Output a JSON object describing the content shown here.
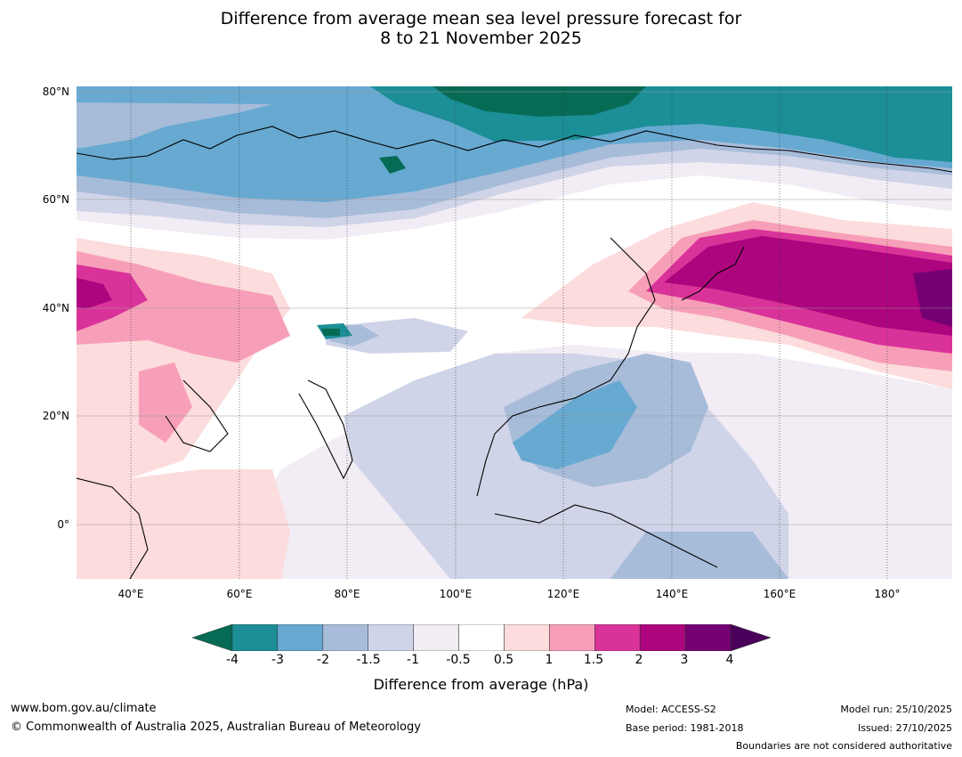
{
  "title": {
    "line1": "Difference from average mean sea level pressure forecast for",
    "line2": "8 to 21 November 2025"
  },
  "map": {
    "lat_labels": [
      "80°N",
      "60°N",
      "40°N",
      "20°N",
      "0°"
    ],
    "lon_labels": [
      "40°E",
      "60°E",
      "80°E",
      "100°E",
      "120°E",
      "140°E",
      "160°E",
      "180°"
    ],
    "lat_range": [
      -10,
      81
    ],
    "lon_range": [
      30,
      192
    ]
  },
  "colorbar": {
    "colors": [
      "#066b55",
      "#1b8e96",
      "#67a9d1",
      "#a7bcd9",
      "#d0d4e8",
      "#f2ecf4",
      "#ffffff",
      "#fcdcdc",
      "#f79fb8",
      "#d93399",
      "#ad057e",
      "#750074",
      "#4a005a"
    ],
    "ticks": [
      "-4",
      "-3",
      "-2",
      "-1.5",
      "-1",
      "-0.5",
      "0.5",
      "1",
      "1.5",
      "2",
      "3",
      "4"
    ],
    "label": "Difference from average (hPa)"
  },
  "footer": {
    "website": "www.bom.gov.au/climate",
    "copyright": "© Commonwealth of Australia 2025, Australian Bureau of Meteorology",
    "model": "Model: ACCESS-S2",
    "base_period": "Base period: 1981-2018",
    "model_run": "Model run: 25/10/2025",
    "issued": "Issued: 27/10/2025",
    "disclaimer": "Boundaries are not considered authoritative"
  }
}
